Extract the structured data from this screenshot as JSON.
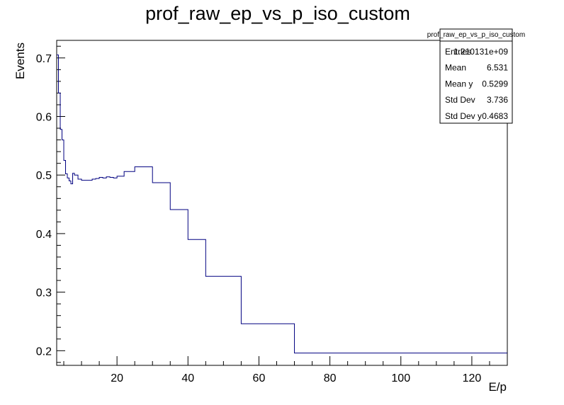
{
  "chart_data": {
    "type": "line",
    "style": "step-histogram",
    "title": "prof_raw_ep_vs_p_iso_custom",
    "xlabel": "E/p",
    "ylabel": "Events",
    "xlim": [
      3,
      130
    ],
    "ylim": [
      0.175,
      0.73
    ],
    "x_ticks": [
      20,
      40,
      60,
      80,
      100,
      120
    ],
    "y_ticks": [
      0.2,
      0.3,
      0.4,
      0.5,
      0.6,
      0.7
    ],
    "grid": false,
    "line_color": "#000080",
    "bin_edges": [
      3,
      3.5,
      4,
      4.5,
      5,
      5.5,
      6,
      6.5,
      7,
      7.5,
      8,
      9,
      10,
      11,
      12,
      13,
      14,
      15,
      16,
      17,
      18,
      19,
      20,
      22,
      25,
      30,
      35,
      40,
      45,
      55,
      70,
      130
    ],
    "series": [
      {
        "values": [
          0.705,
          0.64,
          0.578,
          0.56,
          0.525,
          0.502,
          0.495,
          0.49,
          0.485,
          0.503,
          0.5,
          0.493,
          0.491,
          0.491,
          0.491,
          0.493,
          0.494,
          0.496,
          0.495,
          0.497,
          0.496,
          0.495,
          0.498,
          0.506,
          0.514,
          0.487,
          0.441,
          0.39,
          0.327,
          0.246,
          0.196
        ]
      }
    ],
    "stats_box": {
      "title": "prof_raw_ep_vs_p_iso_custom",
      "rows": [
        {
          "label": "Entries",
          "value": "1.210131e+09"
        },
        {
          "label": "Mean",
          "value": "6.531"
        },
        {
          "label": "Mean y",
          "value": "0.5299"
        },
        {
          "label": "Std Dev",
          "value": "3.736"
        },
        {
          "label": "Std Dev y",
          "value": "0.4683"
        }
      ]
    }
  }
}
